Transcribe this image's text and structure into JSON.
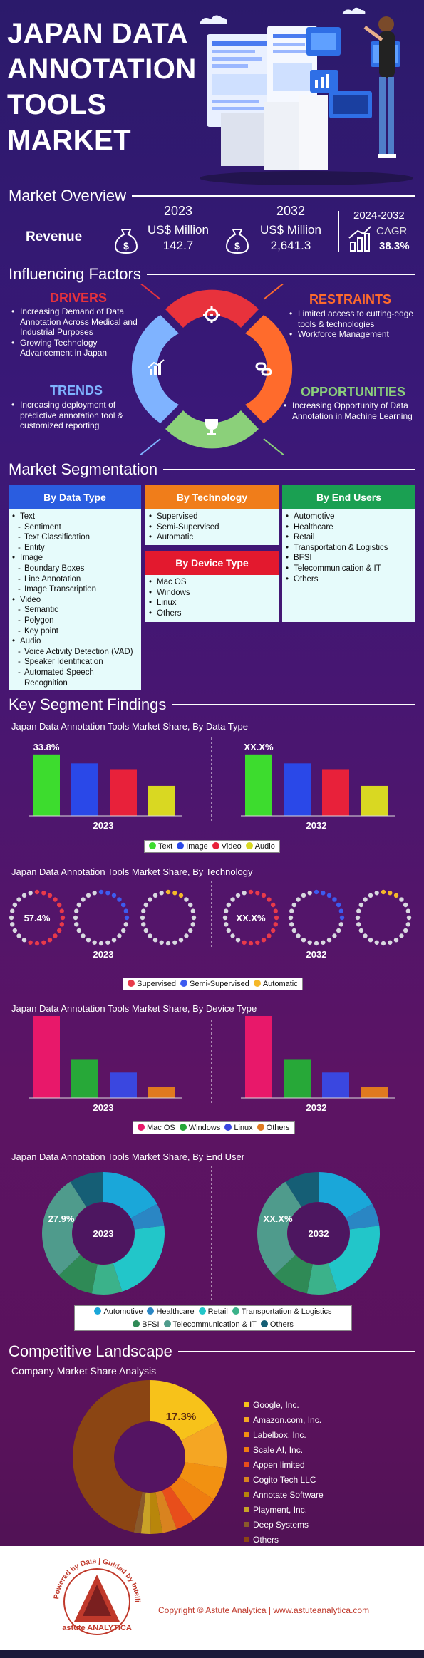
{
  "title_lines": [
    "JAPAN DATA",
    "ANNOTATION",
    "TOOLS",
    "MARKET"
  ],
  "overview": {
    "heading": "Market Overview",
    "revenue_label": "Revenue",
    "y1": "2023",
    "unit1": "US$ Million",
    "val1": "142.7",
    "y2": "2032",
    "unit2": "US$ Million",
    "val2": "2,641.3",
    "cagr_period": "2024-2032",
    "cagr_label": "CAGR",
    "cagr_value": "38.3%"
  },
  "factors": {
    "heading": "Influencing Factors",
    "drivers": {
      "title": "DRIVERS",
      "items": [
        "Increasing Demand of Data Annotation Across Medical and Industrial Purposes",
        "Growing Technology Advancement in Japan"
      ]
    },
    "restraints": {
      "title": "RESTRAINTS",
      "items": [
        "Limited access to cutting-edge tools & technologies",
        "Workforce Management"
      ]
    },
    "trends": {
      "title": "TRENDS",
      "items": [
        "Increasing deployment of predictive annotation tool & customized reporting"
      ]
    },
    "opportunities": {
      "title": "OPPORTUNITIES",
      "items": [
        "Increasing Opportunity of Data Annotation in Machine Learning"
      ]
    },
    "colors": {
      "drivers": "#e8323c",
      "restraints": "#ff6b2c",
      "trends": "#7fb3ff",
      "opportunities": "#8bd07a"
    }
  },
  "segmentation": {
    "heading": "Market Segmentation",
    "data_type": {
      "title": "By Data Type",
      "items": [
        {
          "t": "Text",
          "sub": false
        },
        {
          "t": "Sentiment",
          "sub": true
        },
        {
          "t": "Text  Classification",
          "sub": true
        },
        {
          "t": "Entity",
          "sub": true
        },
        {
          "t": "Image",
          "sub": false
        },
        {
          "t": "Boundary Boxes",
          "sub": true
        },
        {
          "t": "Line Annotation",
          "sub": true
        },
        {
          "t": "Image Transcription",
          "sub": true
        },
        {
          "t": "Video",
          "sub": false
        },
        {
          "t": "Semantic",
          "sub": true
        },
        {
          "t": "Polygon",
          "sub": true
        },
        {
          "t": "Key point",
          "sub": true
        },
        {
          "t": "Audio",
          "sub": false
        },
        {
          "t": "Voice Activity Detection (VAD)",
          "sub": true
        },
        {
          "t": "Speaker Identification",
          "sub": true
        },
        {
          "t": "Automated Speech Recognition",
          "sub": true
        }
      ]
    },
    "technology": {
      "title": "By Technology",
      "items": [
        "Supervised",
        "Semi-Supervised",
        "Automatic"
      ]
    },
    "device": {
      "title": "By Device Type",
      "items": [
        "Mac OS",
        "Windows",
        "Linux",
        "Others"
      ]
    },
    "end_users": {
      "title": "By End Users",
      "items": [
        "Automotive",
        "Healthcare",
        "Retail",
        "Transportation & Logistics",
        "BFSI",
        "Telecommunication & IT",
        "Others"
      ]
    }
  },
  "findings": {
    "heading": "Key Segment Findings",
    "data_type_title": "Japan Data Annotation Tools Market Share, By Data Type",
    "technology_title": "Japan Data Annotation Tools Market Share, By Technology",
    "device_title": "Japan Data Annotation Tools Market Share, By Device Type",
    "end_user_title": "Japan Data Annotation Tools Market Share, By End User",
    "year_a": "2023",
    "year_b": "2032",
    "placeholder": "XX.X%"
  },
  "competitive": {
    "heading": "Competitive Landscape",
    "subtitle": "Company Market Share Analysis",
    "companies": [
      "Google, Inc.",
      "Amazon.com, Inc.",
      "Labelbox, Inc.",
      "Scale AI, Inc.",
      "Appen limited",
      "Cogito Tech LLC",
      "Annotate Software",
      "Playment, Inc.",
      "Deep Systems",
      "Others"
    ],
    "colors": [
      "#f7c21a",
      "#f5a623",
      "#f29111",
      "#ef7d10",
      "#e84e1b",
      "#d9831f",
      "#b8860b",
      "#c9a227",
      "#8a5a2b",
      "#8b4513"
    ]
  },
  "footer": {
    "copyright": "Copyright © Astute Analytica  |  www.astuteanalytica.com",
    "logo_text": "astute ANALYTICA",
    "logo_ring": "Powered by Data | Guided by Intelligence"
  },
  "chart_data": [
    {
      "type": "bar",
      "title": "Japan Data Annotation Tools Market Share, By Data Type",
      "categories": [
        "Text",
        "Image",
        "Video",
        "Audio"
      ],
      "colors": [
        "#3ddc2e",
        "#2a48e8",
        "#e8213a",
        "#d9d822"
      ],
      "series": [
        {
          "name": "2023",
          "values": [
            33.8,
            28.9,
            25.7,
            16.5
          ],
          "label": "33.8%"
        },
        {
          "name": "2032",
          "values": [
            33.8,
            28.9,
            25.7,
            16.5
          ],
          "label": "XX.X%"
        }
      ]
    },
    {
      "type": "pie",
      "title": "Japan Data Annotation Tools Market Share, By Technology",
      "categories": [
        "Supervised",
        "Semi-Supervised",
        "Automatic"
      ],
      "colors": [
        "#e83a4a",
        "#3d5bf0",
        "#f5b829"
      ],
      "series": [
        {
          "name": "2023",
          "values": [
            57.4,
            31.0,
            11.6
          ],
          "label": "57.4%"
        },
        {
          "name": "2032",
          "values": [
            57.4,
            31.0,
            11.6
          ],
          "label": "XX.X%"
        }
      ]
    },
    {
      "type": "bar",
      "title": "Japan Data Annotation Tools Market Share, By Device Type",
      "categories": [
        "Mac OS",
        "Windows",
        "Linux",
        "Others"
      ],
      "colors": [
        "#e8186a",
        "#27a838",
        "#3a47e0",
        "#e07a1f"
      ],
      "series": [
        {
          "name": "2023",
          "values": [
            49.0,
            21.0,
            14.0,
            6.0
          ],
          "label": "49.0%"
        },
        {
          "name": "2032",
          "values": [
            49.0,
            21.0,
            14.0,
            6.0
          ],
          "label": "XX.X%"
        }
      ]
    },
    {
      "type": "pie",
      "title": "Japan Data Annotation Tools Market Share, By End User",
      "categories": [
        "Automotive",
        "Healthcare",
        "Retail",
        "Transportation & Logistics",
        "BFSI",
        "Telecommunication & IT",
        "Others"
      ],
      "colors": [
        "#1aa7d9",
        "#2a86c4",
        "#22c6c9",
        "#3bb28a",
        "#2f8a56",
        "#4f9b8c",
        "#155e75"
      ],
      "series": [
        {
          "name": "2023",
          "values": [
            17.0,
            6.0,
            22.0,
            8.0,
            10.0,
            27.9,
            9.1
          ],
          "label": "27.9%"
        },
        {
          "name": "2032",
          "values": [
            17.0,
            6.0,
            22.0,
            8.0,
            10.0,
            27.9,
            9.1
          ],
          "label": "XX.X%"
        }
      ]
    },
    {
      "type": "pie",
      "title": "Company Market Share Analysis",
      "categories": [
        "Google, Inc.",
        "Amazon.com, Inc.",
        "Labelbox, Inc.",
        "Scale AI, Inc.",
        "Appen limited",
        "Cogito Tech LLC",
        "Annotate Software",
        "Playment, Inc.",
        "Deep Systems",
        "Others"
      ],
      "values": [
        17.3,
        10.0,
        7.0,
        6.0,
        4.0,
        3.0,
        2.5,
        2.0,
        1.5,
        46.7
      ],
      "label": "17.3%"
    }
  ]
}
